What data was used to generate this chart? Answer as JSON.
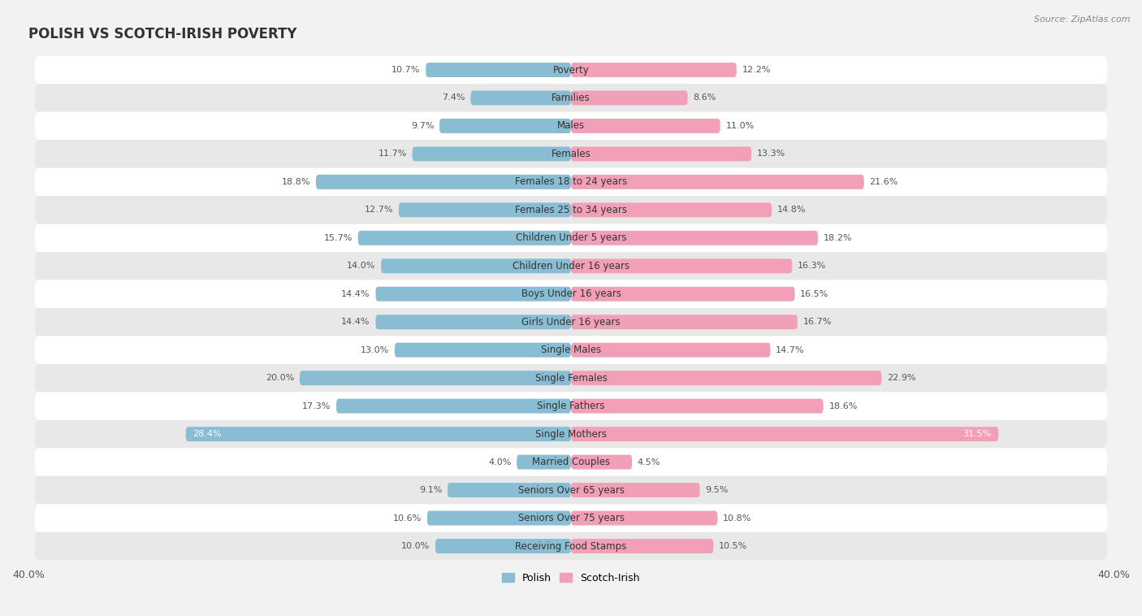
{
  "title": "POLISH VS SCOTCH-IRISH POVERTY",
  "source": "Source: ZipAtlas.com",
  "categories": [
    "Poverty",
    "Families",
    "Males",
    "Females",
    "Females 18 to 24 years",
    "Females 25 to 34 years",
    "Children Under 5 years",
    "Children Under 16 years",
    "Boys Under 16 years",
    "Girls Under 16 years",
    "Single Males",
    "Single Females",
    "Single Fathers",
    "Single Mothers",
    "Married Couples",
    "Seniors Over 65 years",
    "Seniors Over 75 years",
    "Receiving Food Stamps"
  ],
  "polish_values": [
    10.7,
    7.4,
    9.7,
    11.7,
    18.8,
    12.7,
    15.7,
    14.0,
    14.4,
    14.4,
    13.0,
    20.0,
    17.3,
    28.4,
    4.0,
    9.1,
    10.6,
    10.0
  ],
  "scotch_irish_values": [
    12.2,
    8.6,
    11.0,
    13.3,
    21.6,
    14.8,
    18.2,
    16.3,
    16.5,
    16.7,
    14.7,
    22.9,
    18.6,
    31.5,
    4.5,
    9.5,
    10.8,
    10.5
  ],
  "polish_color": "#89BDD3",
  "scotch_irish_color": "#F2A0B8",
  "bar_height": 0.52,
  "background_color": "#f2f2f2",
  "row_color_odd": "#ffffff",
  "row_color_even": "#e8e8e8",
  "title_fontsize": 12,
  "label_fontsize": 8.5,
  "value_fontsize": 8.0,
  "legend_fontsize": 9,
  "axis_label_fontsize": 9,
  "single_mothers_text_color": "#ffffff"
}
